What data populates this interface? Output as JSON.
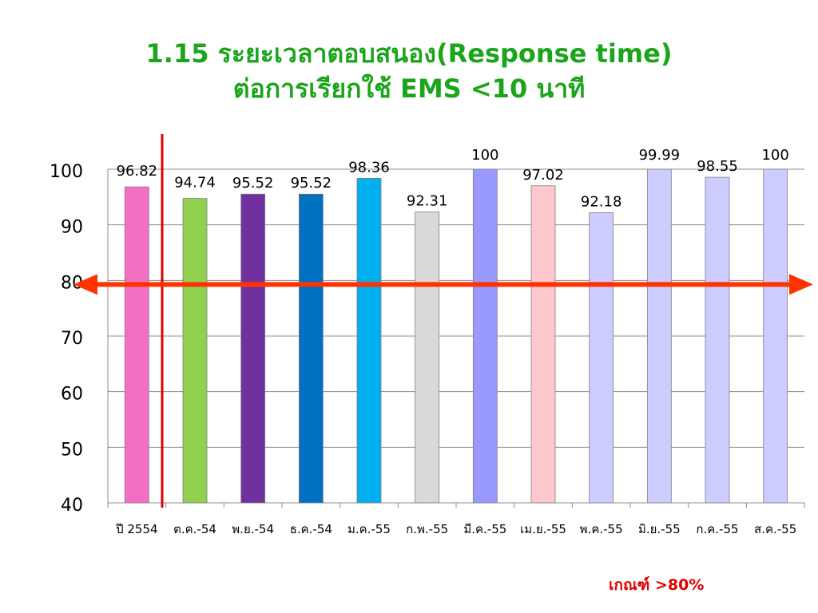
{
  "header": {
    "title_line1": "1.15 ระยะเวลาตอบสนอง(Response time)",
    "title_line2": "ต่อการเรียกใช้ EMS <10 นาที"
  },
  "criterion": "เกณฑ์ >80%",
  "chart_data": {
    "type": "bar",
    "categories": [
      "ปี 2554",
      "ต.ค.-54",
      "พ.ย.-54",
      "ธ.ค.-54",
      "ม.ค.-55",
      "ก.พ.-55",
      "มี.ค.-55",
      "เม.ย.-55",
      "พ.ค.-55",
      "มิ.ย.-55",
      "ก.ค.-55",
      "ส.ค.-55"
    ],
    "values": [
      96.82,
      94.74,
      95.52,
      95.52,
      98.36,
      92.31,
      100,
      97.02,
      92.18,
      99.99,
      98.55,
      100
    ],
    "value_labels": [
      "96.82",
      "94.74",
      "95.52",
      "95.52",
      "98.36",
      "92.31",
      "100",
      "97.02",
      "92.18",
      "99.99",
      "98.55",
      "100"
    ],
    "bar_colors": [
      "#f26fc4",
      "#92d050",
      "#7030a0",
      "#0070c0",
      "#00b0f0",
      "#d9d9d9",
      "#9999ff",
      "#ffc7ce",
      "#ccccff",
      "#ccccff",
      "#ccccff",
      "#ccccff"
    ],
    "ylim": [
      40,
      100
    ],
    "yticks": [
      40,
      50,
      60,
      70,
      80,
      90,
      100
    ],
    "grid": true,
    "threshold": 80,
    "threshold_color": "#ff3300",
    "divider_color": "#e00000",
    "xlabel": "",
    "ylabel": ""
  }
}
